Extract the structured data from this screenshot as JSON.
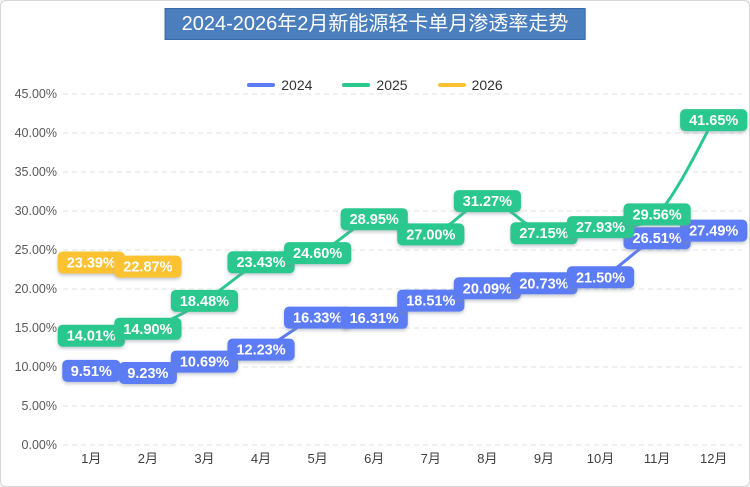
{
  "title": "2024-2026年2月新能源轻卡单月渗透率走势",
  "legend": {
    "items": [
      "2024",
      "2025",
      "2026"
    ]
  },
  "chart_data": {
    "type": "line",
    "title": "2024-2026年2月新能源轻卡单月渗透率走势",
    "categories": [
      "1月",
      "2月",
      "3月",
      "4月",
      "5月",
      "6月",
      "7月",
      "8月",
      "9月",
      "10月",
      "11月",
      "12月"
    ],
    "series": [
      {
        "name": "2024",
        "color": "#5B7CF5",
        "values": [
          9.51,
          9.23,
          10.69,
          12.23,
          16.33,
          16.31,
          18.51,
          20.09,
          20.73,
          21.5,
          26.51,
          27.49
        ]
      },
      {
        "name": "2025",
        "color": "#2BC88E",
        "values": [
          14.01,
          14.9,
          18.48,
          23.43,
          24.6,
          28.95,
          27.0,
          31.27,
          27.15,
          27.93,
          29.56,
          41.65
        ]
      },
      {
        "name": "2026",
        "color": "#FCC231",
        "values": [
          23.39,
          22.87
        ]
      }
    ],
    "xlabel": "",
    "ylabel": "",
    "ylim": [
      0,
      45
    ],
    "ytick_step": 5,
    "ytick_decimals": 2,
    "ytick_suffix": "%",
    "label_decimals": 2,
    "label_suffix": "%",
    "grid": "horizontal-dashed",
    "legend_position": "top-center"
  },
  "styles": {
    "title_bg": "#4B7EBD",
    "title_border": "#3A69A8",
    "title_text": "#FFFFFF",
    "grid_color": "#E2E2E2",
    "y_axis_text": "#595959",
    "x_axis_text": "#3F3F3F",
    "legend_text": "#333333",
    "background": "#FFFFFF",
    "frame_border": "#D6D6D6"
  }
}
